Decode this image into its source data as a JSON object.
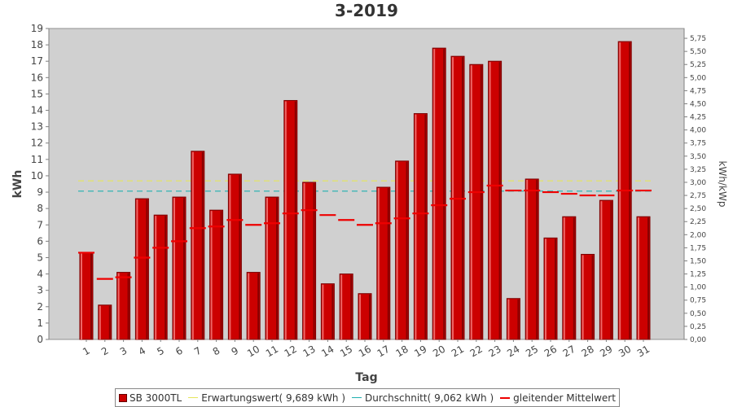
{
  "chart_data": {
    "type": "bar",
    "title": "3-2019",
    "xlabel": "Tag",
    "ylabel": "kWh",
    "y2label": "kWh/kWp",
    "ylim": [
      0,
      19
    ],
    "y2lim": [
      0,
      5.9375
    ],
    "grid": false,
    "legend_position": "bottom",
    "categories": [
      "1",
      "2",
      "3",
      "4",
      "5",
      "6",
      "7",
      "8",
      "9",
      "10",
      "11",
      "12",
      "13",
      "14",
      "15",
      "16",
      "17",
      "18",
      "19",
      "20",
      "21",
      "22",
      "23",
      "24",
      "25",
      "26",
      "27",
      "28",
      "29",
      "30",
      "31"
    ],
    "yticks": [
      "0",
      "1",
      "2",
      "3",
      "4",
      "5",
      "6",
      "7",
      "8",
      "9",
      "10",
      "11",
      "12",
      "13",
      "14",
      "15",
      "16",
      "17",
      "18",
      "19"
    ],
    "y2ticks": [
      "0,00",
      "0,25",
      "0,50",
      "0,75",
      "1,00",
      "1,25",
      "1,50",
      "1,75",
      "2,00",
      "2,25",
      "2,50",
      "2,75",
      "3,00",
      "3,25",
      "3,50",
      "3,75",
      "4,00",
      "4,25",
      "4,50",
      "4,75",
      "5,00",
      "5,25",
      "5,50",
      "5,75"
    ],
    "series": [
      {
        "name": "SB 3000TL",
        "type": "bar",
        "color": "#cc0000",
        "values": [
          5.3,
          2.1,
          4.1,
          8.6,
          7.6,
          8.7,
          11.5,
          7.9,
          10.1,
          4.1,
          8.7,
          14.6,
          9.6,
          3.4,
          4.0,
          2.8,
          9.3,
          10.9,
          13.8,
          17.8,
          17.3,
          16.8,
          17.0,
          2.5,
          9.8,
          6.2,
          7.5,
          5.2,
          8.5,
          18.2,
          7.5
        ]
      },
      {
        "name": "Erwartungswert( 9,689 kWh )",
        "type": "hline",
        "color": "#e6e65a",
        "value": 9.689
      },
      {
        "name": "Durchschnitt( 9,062 kWh )",
        "type": "hline",
        "color": "#20b0b0",
        "value": 9.062
      },
      {
        "name": "gleitender Mittelwert",
        "type": "step",
        "color": "#ee0000",
        "values": [
          5.3,
          3.7,
          3.8,
          5.0,
          5.6,
          6.0,
          6.8,
          6.9,
          7.3,
          7.0,
          7.1,
          7.7,
          7.9,
          7.6,
          7.3,
          7.0,
          7.1,
          7.4,
          7.7,
          8.2,
          8.6,
          9.0,
          9.4,
          9.1,
          9.1,
          9.0,
          8.9,
          8.8,
          8.8,
          9.1,
          9.1
        ]
      }
    ]
  }
}
